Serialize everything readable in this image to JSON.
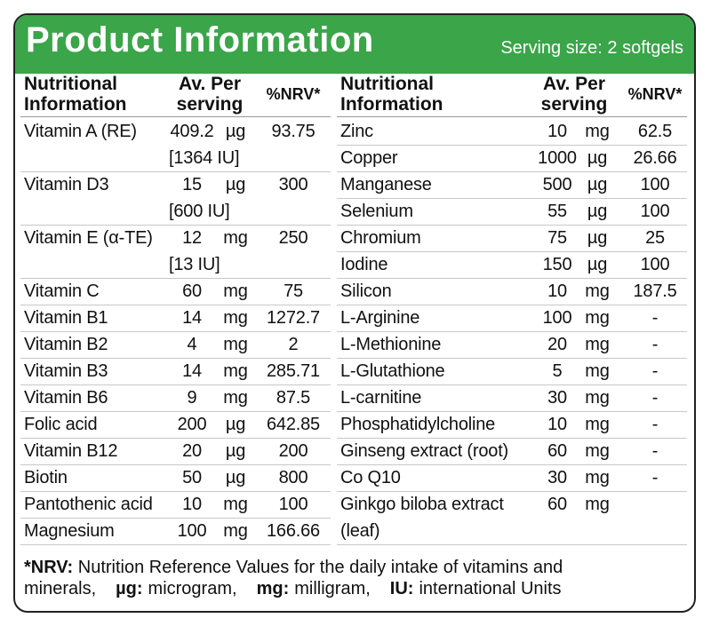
{
  "header": {
    "title": "Product Information",
    "serving": "Serving size: 2 softgels"
  },
  "left_table": {
    "headers": {
      "name": [
        "Nutritional",
        "Information"
      ],
      "amount": [
        "Av. Per",
        "serving"
      ],
      "nrv": "%NRV*"
    },
    "rows": [
      {
        "name": "Vitamin A (RE)",
        "amount": "409.2",
        "unit": "µg",
        "nrv": "93.75",
        "iu": "[1364 IU]"
      },
      {
        "name": "Vitamin D3",
        "amount": "15",
        "unit": "µg",
        "nrv": "300",
        "iu": "[600 IU]"
      },
      {
        "name": "Vitamin E (α-TE)",
        "amount": "12",
        "unit": "mg",
        "nrv": "250",
        "iu": "[13 IU]"
      },
      {
        "name": "Vitamin C",
        "amount": "60",
        "unit": "mg",
        "nrv": "75"
      },
      {
        "name": "Vitamin B1",
        "amount": "14",
        "unit": "mg",
        "nrv": "1272.7"
      },
      {
        "name": "Vitamin B2",
        "amount": "4",
        "unit": "mg",
        "nrv": "2"
      },
      {
        "name": "Vitamin B3",
        "amount": "14",
        "unit": "mg",
        "nrv": "285.71"
      },
      {
        "name": "Vitamin B6",
        "amount": "9",
        "unit": "mg",
        "nrv": "87.5"
      },
      {
        "name": "Folic acid",
        "amount": "200",
        "unit": "µg",
        "nrv": "642.85"
      },
      {
        "name": "Vitamin B12",
        "amount": "20",
        "unit": "µg",
        "nrv": "200"
      },
      {
        "name": "Biotin",
        "amount": "50",
        "unit": "µg",
        "nrv": "800"
      },
      {
        "name": "Pantothenic acid",
        "amount": "10",
        "unit": "mg",
        "nrv": "100"
      },
      {
        "name": "Magnesium",
        "amount": "100",
        "unit": "mg",
        "nrv": "166.66"
      }
    ]
  },
  "right_table": {
    "headers": {
      "name": [
        "Nutritional",
        "Information"
      ],
      "amount": [
        "Av. Per",
        "serving"
      ],
      "nrv": "%NRV*"
    },
    "rows": [
      {
        "name": "Zinc",
        "amount": "10",
        "unit": "mg",
        "nrv": "62.5"
      },
      {
        "name": "Copper",
        "amount": "1000",
        "unit": "µg",
        "nrv": "26.66"
      },
      {
        "name": "Manganese",
        "amount": "500",
        "unit": "µg",
        "nrv": "100"
      },
      {
        "name": "Selenium",
        "amount": "55",
        "unit": "µg",
        "nrv": "100"
      },
      {
        "name": "Chromium",
        "amount": "75",
        "unit": "µg",
        "nrv": "25"
      },
      {
        "name": "Iodine",
        "amount": "150",
        "unit": "µg",
        "nrv": "100"
      },
      {
        "name": "Silicon",
        "amount": "10",
        "unit": "mg",
        "nrv": "187.5"
      },
      {
        "name": "L-Arginine",
        "amount": "100",
        "unit": "mg",
        "nrv": "-"
      },
      {
        "name": "L-Methionine",
        "amount": "20",
        "unit": "mg",
        "nrv": "-"
      },
      {
        "name": "L-Glutathione",
        "amount": "5",
        "unit": "mg",
        "nrv": "-"
      },
      {
        "name": "L-carnitine",
        "amount": "30",
        "unit": "mg",
        "nrv": "-"
      },
      {
        "name": "Phosphatidylcholine",
        "amount": "10",
        "unit": "mg",
        "nrv": "-"
      },
      {
        "name": "Ginseng extract (root)",
        "amount": "60",
        "unit": "mg",
        "nrv": "-"
      },
      {
        "name": "Co Q10",
        "amount": "30",
        "unit": "mg",
        "nrv": "-"
      },
      {
        "name": "Ginkgo biloba extract",
        "amount": "60",
        "unit": "mg",
        "name_cont": "(leaf)"
      }
    ]
  },
  "footer": {
    "line1": [
      {
        "text": "*NRV:",
        "bold": true
      },
      {
        "text": " Nutrition Reference Values for the daily intake of vitamins and",
        "bold": false
      }
    ],
    "line2": [
      {
        "text": "minerals,",
        "bold": false
      },
      {
        "text": "µg:",
        "bold": true
      },
      {
        "text": "microgram,",
        "bold": false
      },
      {
        "text": "mg:",
        "bold": true
      },
      {
        "text": "milligram,",
        "bold": false
      },
      {
        "text": "IU:",
        "bold": true
      },
      {
        "text": "international Units",
        "bold": false
      }
    ]
  }
}
